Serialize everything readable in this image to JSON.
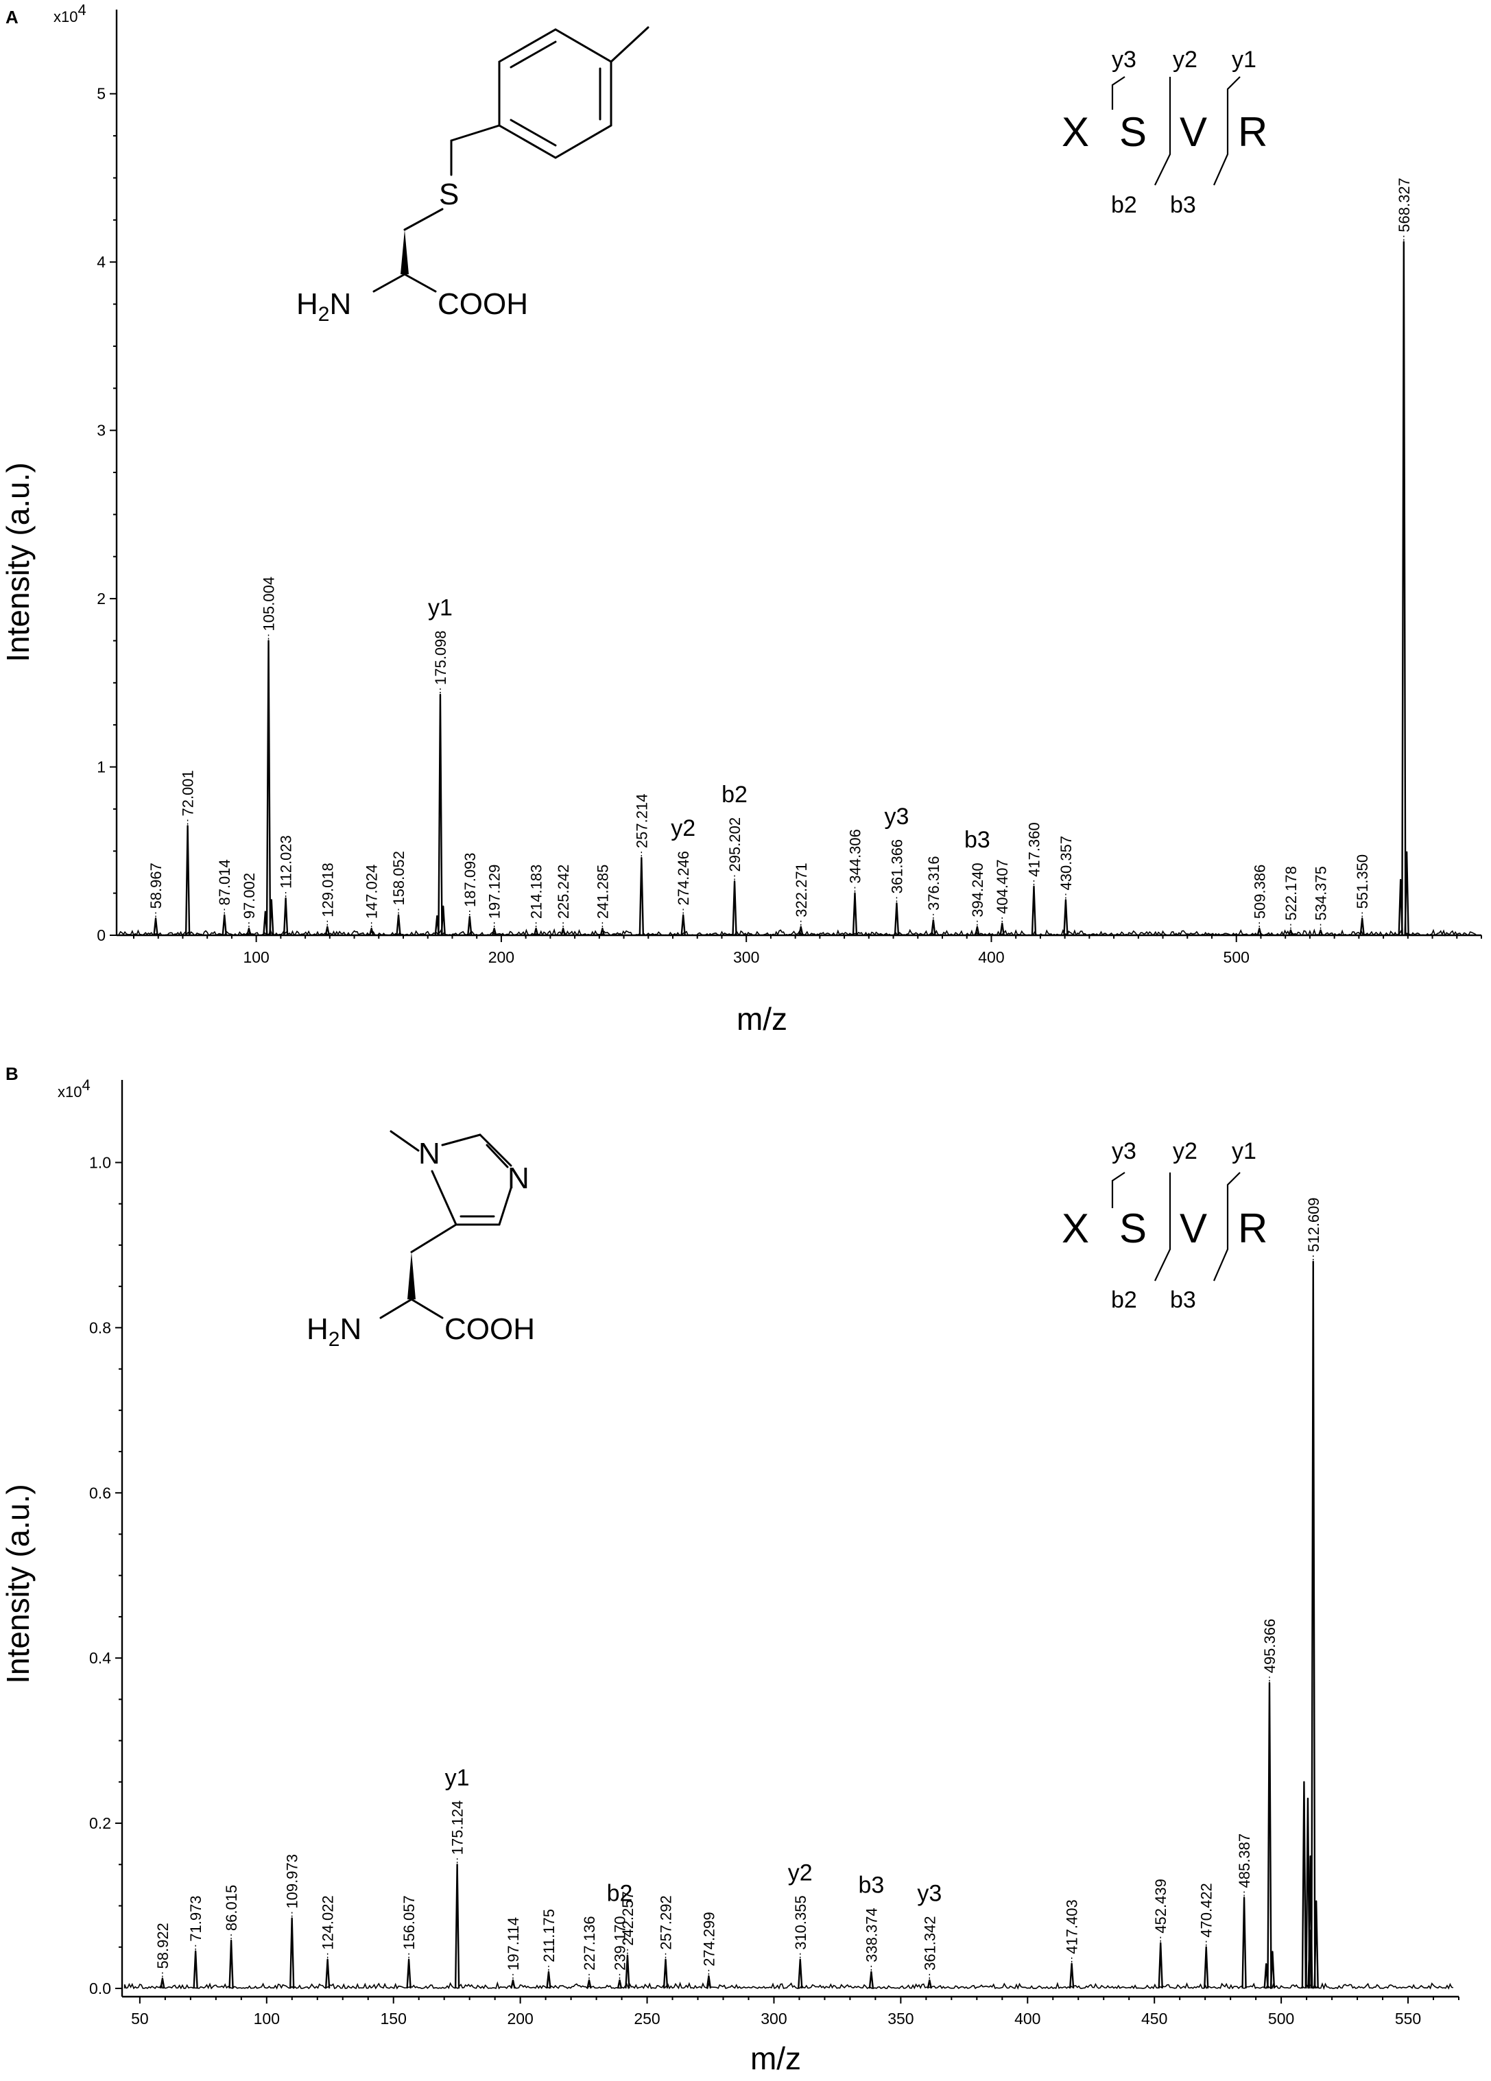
{
  "chart_data": [
    {
      "panel": "A",
      "type": "bar",
      "subtype": "mass-spectrum",
      "xlabel": "m/z",
      "ylabel": "Intensity (a.u.)",
      "y_multiplier": "x10",
      "y_multiplier_exp": "4",
      "xlim": [
        43,
        600
      ],
      "ylim": [
        0,
        5.5
      ],
      "xticks": [
        100,
        200,
        300,
        400,
        500
      ],
      "yticks": [
        0,
        1,
        2,
        3,
        4,
        5
      ],
      "structure_labels": [
        "S",
        "H",
        "2",
        "N",
        "COOH"
      ],
      "sequence": [
        "X",
        "S",
        "V",
        "R"
      ],
      "sequence_ions": {
        "top": [
          "y3",
          "y2",
          "y1"
        ],
        "bottom": [
          "b2",
          "b3"
        ]
      },
      "peaks": [
        {
          "mz": 58.967,
          "intensity": 0.1,
          "label": "58.967"
        },
        {
          "mz": 72.001,
          "intensity": 0.65,
          "label": "72.001"
        },
        {
          "mz": 87.014,
          "intensity": 0.12,
          "label": "87.014"
        },
        {
          "mz": 97.002,
          "intensity": 0.04,
          "label": "97.002"
        },
        {
          "mz": 105.004,
          "intensity": 1.75,
          "label": "105.004"
        },
        {
          "mz": 112.023,
          "intensity": 0.22,
          "label": "112.023"
        },
        {
          "mz": 129.018,
          "intensity": 0.05,
          "label": "129.018"
        },
        {
          "mz": 147.024,
          "intensity": 0.04,
          "label": "147.024"
        },
        {
          "mz": 158.052,
          "intensity": 0.12,
          "label": "158.052"
        },
        {
          "mz": 175.098,
          "intensity": 1.43,
          "label": "175.098",
          "ion": "y1"
        },
        {
          "mz": 187.093,
          "intensity": 0.11,
          "label": "187.093"
        },
        {
          "mz": 197.129,
          "intensity": 0.04,
          "label": "197.129"
        },
        {
          "mz": 214.183,
          "intensity": 0.04,
          "label": "214.183"
        },
        {
          "mz": 225.242,
          "intensity": 0.04,
          "label": "225.242"
        },
        {
          "mz": 241.285,
          "intensity": 0.04,
          "label": "241.285"
        },
        {
          "mz": 257.214,
          "intensity": 0.46,
          "label": "257.214"
        },
        {
          "mz": 274.246,
          "intensity": 0.12,
          "label": "274.246",
          "ion": "y2"
        },
        {
          "mz": 295.202,
          "intensity": 0.32,
          "label": "295.202",
          "ion": "b2"
        },
        {
          "mz": 322.271,
          "intensity": 0.05,
          "label": "322.271"
        },
        {
          "mz": 344.306,
          "intensity": 0.25,
          "label": "344.306"
        },
        {
          "mz": 361.366,
          "intensity": 0.19,
          "label": "361.366",
          "ion": "y3"
        },
        {
          "mz": 376.316,
          "intensity": 0.09,
          "label": "376.316"
        },
        {
          "mz": 394.24,
          "intensity": 0.05,
          "label": "394.240",
          "ion": "b3"
        },
        {
          "mz": 404.407,
          "intensity": 0.07,
          "label": "404.407"
        },
        {
          "mz": 417.36,
          "intensity": 0.29,
          "label": "417.360"
        },
        {
          "mz": 430.357,
          "intensity": 0.21,
          "label": "430.357"
        },
        {
          "mz": 509.386,
          "intensity": 0.04,
          "label": "509.386"
        },
        {
          "mz": 522.178,
          "intensity": 0.03,
          "label": "522.178"
        },
        {
          "mz": 534.375,
          "intensity": 0.03,
          "label": "534.375"
        },
        {
          "mz": 551.35,
          "intensity": 0.1,
          "label": "551.350"
        },
        {
          "mz": 568.327,
          "intensity": 4.12,
          "label": "568.327"
        }
      ]
    },
    {
      "panel": "B",
      "type": "bar",
      "subtype": "mass-spectrum",
      "xlabel": "m/z",
      "ylabel": "Intensity (a.u.)",
      "y_multiplier": "x10",
      "y_multiplier_exp": "4",
      "xlim": [
        43,
        570
      ],
      "ylim": [
        -0.01,
        1.1
      ],
      "xticks": [
        50,
        100,
        150,
        200,
        250,
        300,
        350,
        400,
        450,
        500,
        550
      ],
      "yticks": [
        0.0,
        0.2,
        0.4,
        0.6,
        0.8,
        1.0
      ],
      "ytick_labels": [
        "0.0",
        "0.2",
        "0.4",
        "0.6",
        "0.8",
        "1.0"
      ],
      "structure_labels": [
        "N",
        "N",
        "H",
        "2",
        "N",
        "COOH"
      ],
      "sequence": [
        "X",
        "S",
        "V",
        "R"
      ],
      "sequence_ions": {
        "top": [
          "y3",
          "y2",
          "y1"
        ],
        "bottom": [
          "b2",
          "b3"
        ]
      },
      "peaks": [
        {
          "mz": 58.922,
          "intensity": 0.012,
          "label": "58.922"
        },
        {
          "mz": 71.973,
          "intensity": 0.045,
          "label": "71.973"
        },
        {
          "mz": 86.015,
          "intensity": 0.058,
          "label": "86.015"
        },
        {
          "mz": 109.973,
          "intensity": 0.085,
          "label": "109.973"
        },
        {
          "mz": 124.022,
          "intensity": 0.035,
          "label": "124.022"
        },
        {
          "mz": 156.057,
          "intensity": 0.035,
          "label": "156.057"
        },
        {
          "mz": 175.124,
          "intensity": 0.15,
          "label": "175.124",
          "ion": "y1"
        },
        {
          "mz": 197.114,
          "intensity": 0.01,
          "label": "197.114"
        },
        {
          "mz": 211.175,
          "intensity": 0.02,
          "label": "211.175"
        },
        {
          "mz": 227.136,
          "intensity": 0.01,
          "label": "227.136"
        },
        {
          "mz": 239.17,
          "intensity": 0.01,
          "label": "239.170",
          "ion": "b2"
        },
        {
          "mz": 242.257,
          "intensity": 0.04,
          "label": "242.257"
        },
        {
          "mz": 257.292,
          "intensity": 0.035,
          "label": "257.292"
        },
        {
          "mz": 274.299,
          "intensity": 0.015,
          "label": "274.299"
        },
        {
          "mz": 310.355,
          "intensity": 0.035,
          "label": "310.355",
          "ion": "y2"
        },
        {
          "mz": 338.374,
          "intensity": 0.02,
          "label": "338.374",
          "ion": "b3"
        },
        {
          "mz": 361.342,
          "intensity": 0.01,
          "label": "361.342",
          "ion": "y3"
        },
        {
          "mz": 417.403,
          "intensity": 0.03,
          "label": "417.403"
        },
        {
          "mz": 452.439,
          "intensity": 0.055,
          "label": "452.439"
        },
        {
          "mz": 470.422,
          "intensity": 0.05,
          "label": "470.422"
        },
        {
          "mz": 485.387,
          "intensity": 0.11,
          "label": "485.387"
        },
        {
          "mz": 495.366,
          "intensity": 0.37,
          "label": "495.366"
        },
        {
          "mz": 512.609,
          "intensity": 0.88,
          "label": "512.609"
        }
      ],
      "unlabeled_peaks": [
        {
          "mz": 509.0,
          "intensity": 0.25
        },
        {
          "mz": 510.5,
          "intensity": 0.23
        },
        {
          "mz": 511.5,
          "intensity": 0.16
        }
      ]
    }
  ]
}
